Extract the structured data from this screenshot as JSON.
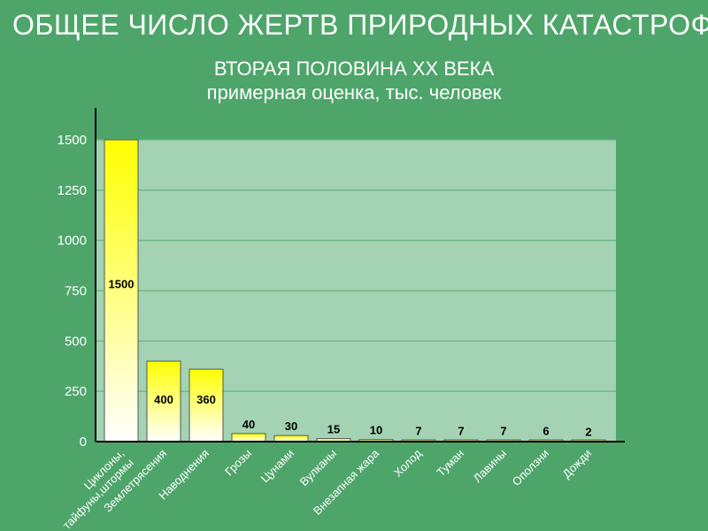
{
  "chart_data": {
    "type": "bar",
    "title": "ОБЩЕЕ ЧИСЛО ЖЕРТВ ПРИРОДНЫХ КАТАСТРОФ",
    "subtitle": [
      "ВТОРАЯ ПОЛОВИНА XX ВЕКА",
      "примерная оценка, тыс. человек"
    ],
    "categories": [
      "Циклоны, тайфуны,штормы",
      "Землетрясения",
      "Наводнения",
      "Грозы",
      "Цунами",
      "Вулканы",
      "Внезапная жара",
      "Холод",
      "Туман",
      "Лавины",
      "Оползни",
      "Дожди"
    ],
    "category_lines": [
      [
        "Циклоны,",
        "тайфуны,штормы"
      ],
      [
        "Землетрясения"
      ],
      [
        "Наводнения"
      ],
      [
        "Грозы"
      ],
      [
        "Цунами"
      ],
      [
        "Вулканы"
      ],
      [
        "Внезапная жара"
      ],
      [
        "Холод"
      ],
      [
        "Туман"
      ],
      [
        "Лавины"
      ],
      [
        "Оползни"
      ],
      [
        "Дожди"
      ]
    ],
    "values": [
      1500,
      400,
      360,
      40,
      30,
      15,
      10,
      7,
      7,
      7,
      6,
      2
    ],
    "ylim": [
      0,
      1500
    ],
    "yticks": [
      0,
      250,
      500,
      750,
      1000,
      1250,
      1500
    ],
    "grid": true,
    "colors": {
      "background": "#4ea56a",
      "plot_area": "#a3d3b3",
      "bar_top": "#ffff00",
      "bar_bottom": "#ffffff",
      "gridline": "#6fb886",
      "axis": "#000000"
    }
  }
}
